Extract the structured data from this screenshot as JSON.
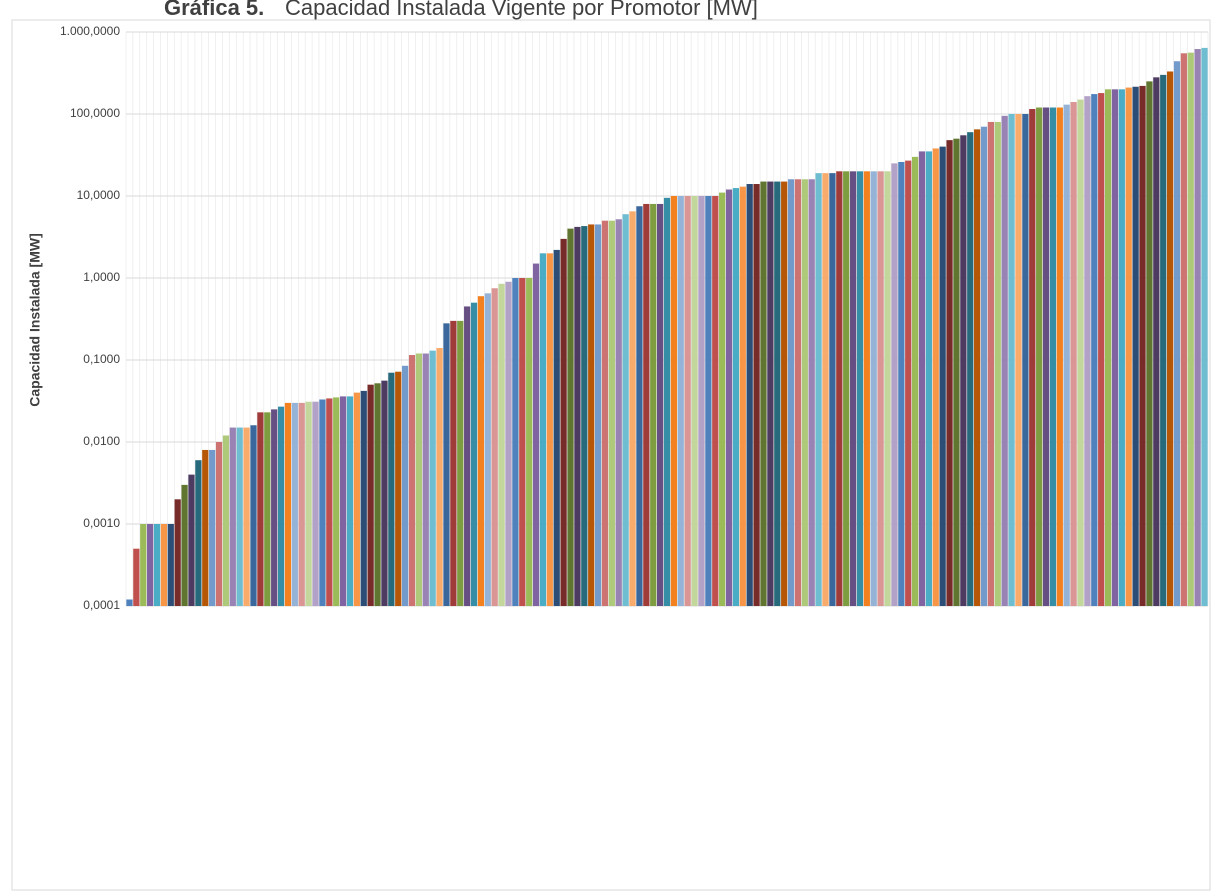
{
  "chart_data": {
    "type": "bar",
    "title_prefix": "Gráfica 5.",
    "title": "Capacidad Instalada Vigente por Promotor [MW]",
    "ylabel": "Capacidad Instalada [MW]",
    "log_scale": true,
    "grid": true,
    "ylim": [
      0.0001,
      1000
    ],
    "yticks": [
      {
        "value": 0.0001,
        "label": "0,0001"
      },
      {
        "value": 0.001,
        "label": "0,0010"
      },
      {
        "value": 0.01,
        "label": "0,0100"
      },
      {
        "value": 0.1,
        "label": "0,1000"
      },
      {
        "value": 1,
        "label": "1,0000"
      },
      {
        "value": 10,
        "label": "10,0000"
      },
      {
        "value": 100,
        "label": "100,0000"
      },
      {
        "value": 1000,
        "label": "1.000,0000"
      }
    ],
    "colors": [
      "#4f81bd",
      "#c0504d",
      "#9bbb59",
      "#8064a2",
      "#4bacc6",
      "#f79646",
      "#2c4d75",
      "#772c2a",
      "#5f7530",
      "#4d3b62",
      "#276a7c",
      "#b65708",
      "#729aca",
      "#cd7371",
      "#afc97a",
      "#9983b5",
      "#6fbdd1",
      "#f9ab6b",
      "#3a679c",
      "#9f3b38",
      "#7e9d40",
      "#664f83",
      "#358ea6",
      "#f38120",
      "#95b3d7",
      "#d99694",
      "#c3d69b",
      "#b3a2c7"
    ],
    "values": [
      0.00012,
      0.0005,
      0.001,
      0.001,
      0.001,
      0.001,
      0.001,
      0.002,
      0.003,
      0.004,
      0.006,
      0.008,
      0.008,
      0.01,
      0.012,
      0.015,
      0.015,
      0.015,
      0.016,
      0.023,
      0.023,
      0.025,
      0.027,
      0.03,
      0.03,
      0.03,
      0.031,
      0.031,
      0.033,
      0.034,
      0.035,
      0.036,
      0.036,
      0.04,
      0.042,
      0.05,
      0.052,
      0.056,
      0.07,
      0.072,
      0.085,
      0.115,
      0.12,
      0.12,
      0.13,
      0.14,
      0.28,
      0.3,
      0.3,
      0.45,
      0.5,
      0.6,
      0.65,
      0.75,
      0.85,
      0.9,
      1,
      1,
      1,
      1.5,
      2,
      2,
      2.2,
      3,
      4,
      4.2,
      4.3,
      4.5,
      4.5,
      5,
      5,
      5.2,
      6,
      6.5,
      7.5,
      8,
      8,
      8,
      9.5,
      10,
      10,
      10,
      10,
      10,
      10,
      10,
      11,
      12,
      12.5,
      13,
      14,
      14,
      15,
      15,
      15,
      15,
      16,
      16,
      16,
      16,
      19,
      19,
      19,
      20,
      20,
      20,
      20,
      20,
      20,
      20,
      20,
      25,
      26,
      27,
      30,
      35,
      35,
      38,
      40,
      48,
      50,
      55,
      60,
      65,
      70,
      80,
      80,
      95,
      100,
      100,
      100,
      115,
      120,
      120,
      120,
      120,
      130,
      140,
      150,
      165,
      175,
      180,
      200,
      200,
      200,
      210,
      215,
      220,
      250,
      280,
      300,
      330,
      440,
      550,
      560,
      620,
      640
    ]
  }
}
